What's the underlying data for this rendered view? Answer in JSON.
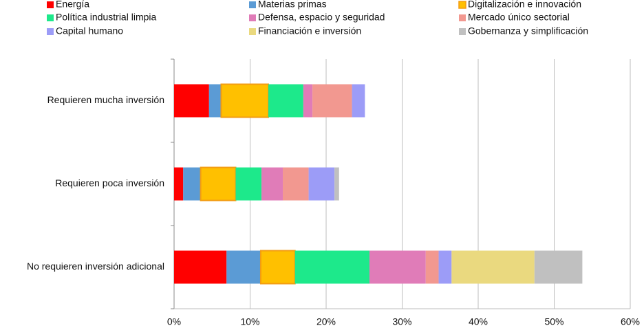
{
  "chart_data": {
    "type": "stacked-barh",
    "categories": [
      "Requieren mucha inversión",
      "Requieren poca inversión",
      "No requieren inversión adicional"
    ],
    "series": [
      {
        "name": "Energía",
        "color": "#ff0000",
        "values": [
          4.6,
          1.2,
          6.9
        ]
      },
      {
        "name": "Materias primas",
        "color": "#5b9bd5",
        "values": [
          1.6,
          2.3,
          4.5
        ]
      },
      {
        "name": "Digitalización e innovación",
        "color": "#ffc000",
        "edgecolor": "#f39c12",
        "values": [
          6.2,
          4.6,
          4.5
        ]
      },
      {
        "name": "Política industrial limpia",
        "color": "#1de98b",
        "values": [
          4.6,
          3.4,
          9.8
        ]
      },
      {
        "name": "Defensa, espacio y seguridad",
        "color": "#e07cb8",
        "values": [
          1.2,
          2.8,
          7.4
        ]
      },
      {
        "name": "Mercado único sectorial",
        "color": "#f29890",
        "values": [
          5.2,
          3.4,
          1.7
        ]
      },
      {
        "name": "Capital humano",
        "color": "#9c9cf7",
        "values": [
          1.7,
          3.4,
          1.7
        ]
      },
      {
        "name": "Financiación e inversión",
        "color": "#ead97f",
        "values": [
          0,
          0,
          10.9
        ]
      },
      {
        "name": "Gobernanza y simplificación",
        "color": "#c0c0c0",
        "values": [
          0,
          0.6,
          6.3
        ]
      }
    ],
    "xlim": [
      0,
      60
    ],
    "xticks": [
      {
        "value": 0,
        "label": "0%"
      },
      {
        "value": 10,
        "label": "10%"
      },
      {
        "value": 20,
        "label": "20%"
      },
      {
        "value": 30,
        "label": "30%"
      },
      {
        "value": 40,
        "label": "40%"
      },
      {
        "value": 50,
        "label": "50%"
      },
      {
        "value": 60,
        "label": "60%"
      }
    ],
    "grid": true,
    "legend": "top"
  }
}
